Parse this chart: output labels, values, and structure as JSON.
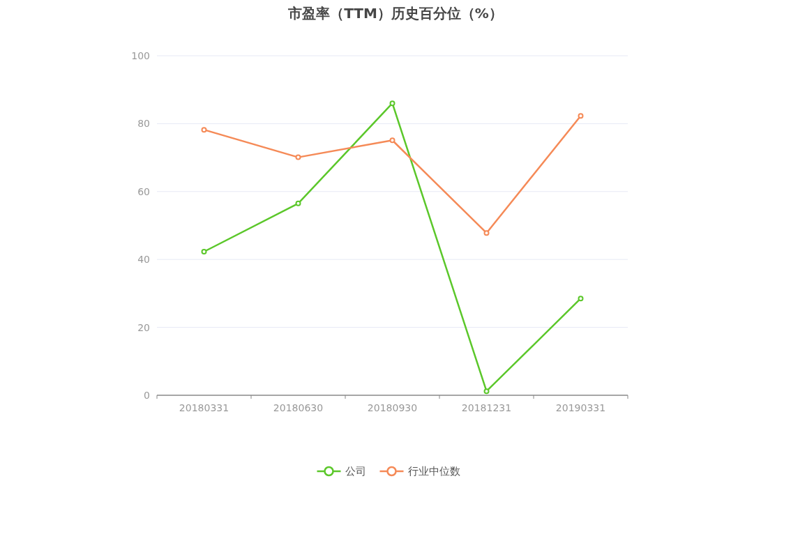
{
  "chart_data": {
    "type": "line",
    "title": "市盈率（TTM）历史百分位（%）",
    "categories": [
      "20180331",
      "20180630",
      "20180930",
      "20181231",
      "20190331"
    ],
    "series": [
      {
        "name": "公司",
        "color": "#5bc72a",
        "values": [
          42.3,
          56.5,
          86.0,
          1.2,
          28.5
        ]
      },
      {
        "name": "行业中位数",
        "color": "#f58a57",
        "values": [
          78.2,
          70.1,
          75.1,
          47.8,
          82.3
        ]
      }
    ],
    "ylim": [
      0,
      100
    ],
    "yticks": [
      0,
      20,
      40,
      60,
      80,
      100
    ],
    "grid": "y",
    "legend": "bottom",
    "marker": "circle",
    "line_style": "solid"
  }
}
